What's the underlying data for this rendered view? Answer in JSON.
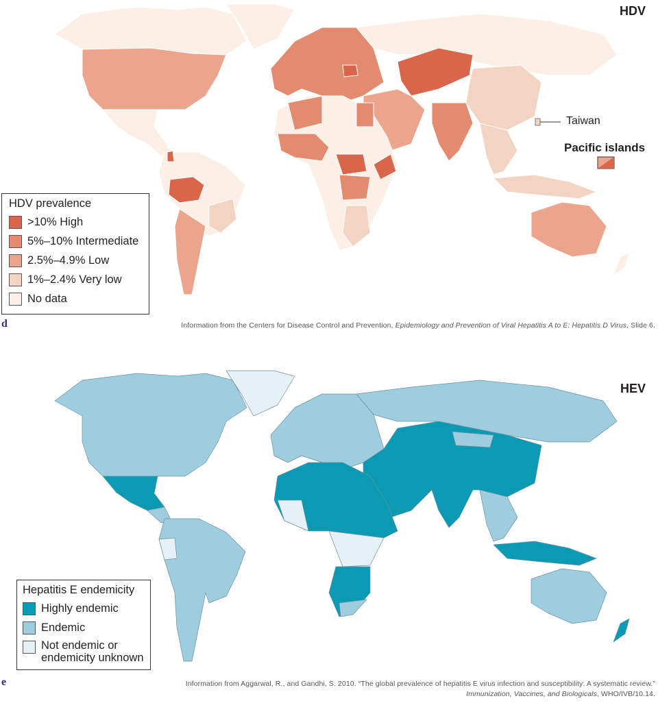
{
  "hdv": {
    "panel_letter": "d",
    "title": "HDV",
    "legend": {
      "title": "HDV prevalence",
      "items": [
        {
          "label": ">10% High",
          "color": "#d9664a"
        },
        {
          "label": "5%–10% Intermediate",
          "color": "#e28b6f"
        },
        {
          "label": "2.5%–4.9% Low",
          "color": "#eba58c"
        },
        {
          "label": "1%–2.4% Very low",
          "color": "#f3d3c2"
        },
        {
          "label": "No data",
          "color": "#fcefe6"
        }
      ]
    },
    "callouts": {
      "taiwan": "Taiwan",
      "pacific": "Pacific islands"
    },
    "source_prefix": "Information from the Centers for Disease Control and Prevention, ",
    "source_title": "Epidemiology and Prevention of Viral Hepatitis A to E: Hepatitis D Virus",
    "source_suffix": ", Slide 6."
  },
  "hev": {
    "panel_letter": "e",
    "title": "HEV",
    "legend": {
      "title": "Hepatitis E endemicity",
      "items": [
        {
          "label": "Highly endemic",
          "color": "#0a9ab4"
        },
        {
          "label": "Endemic",
          "color": "#9ecde0"
        },
        {
          "label": "Not endemic or endemicity unknown",
          "label_line1": "Not endemic or",
          "label_line2": "endemicity unknown",
          "color": "#e6f1f7"
        }
      ]
    },
    "source_line1": "Information from Aggarwal, R., and Gandhi, S. 2010. “The global prevalence of hepatitis E virus infection and susceptibility: A systematic review.”",
    "source_line2_title": "Immunization, Vaccines, and Biologicals",
    "source_line2_suffix": ", WHO/IVB/10.14."
  }
}
